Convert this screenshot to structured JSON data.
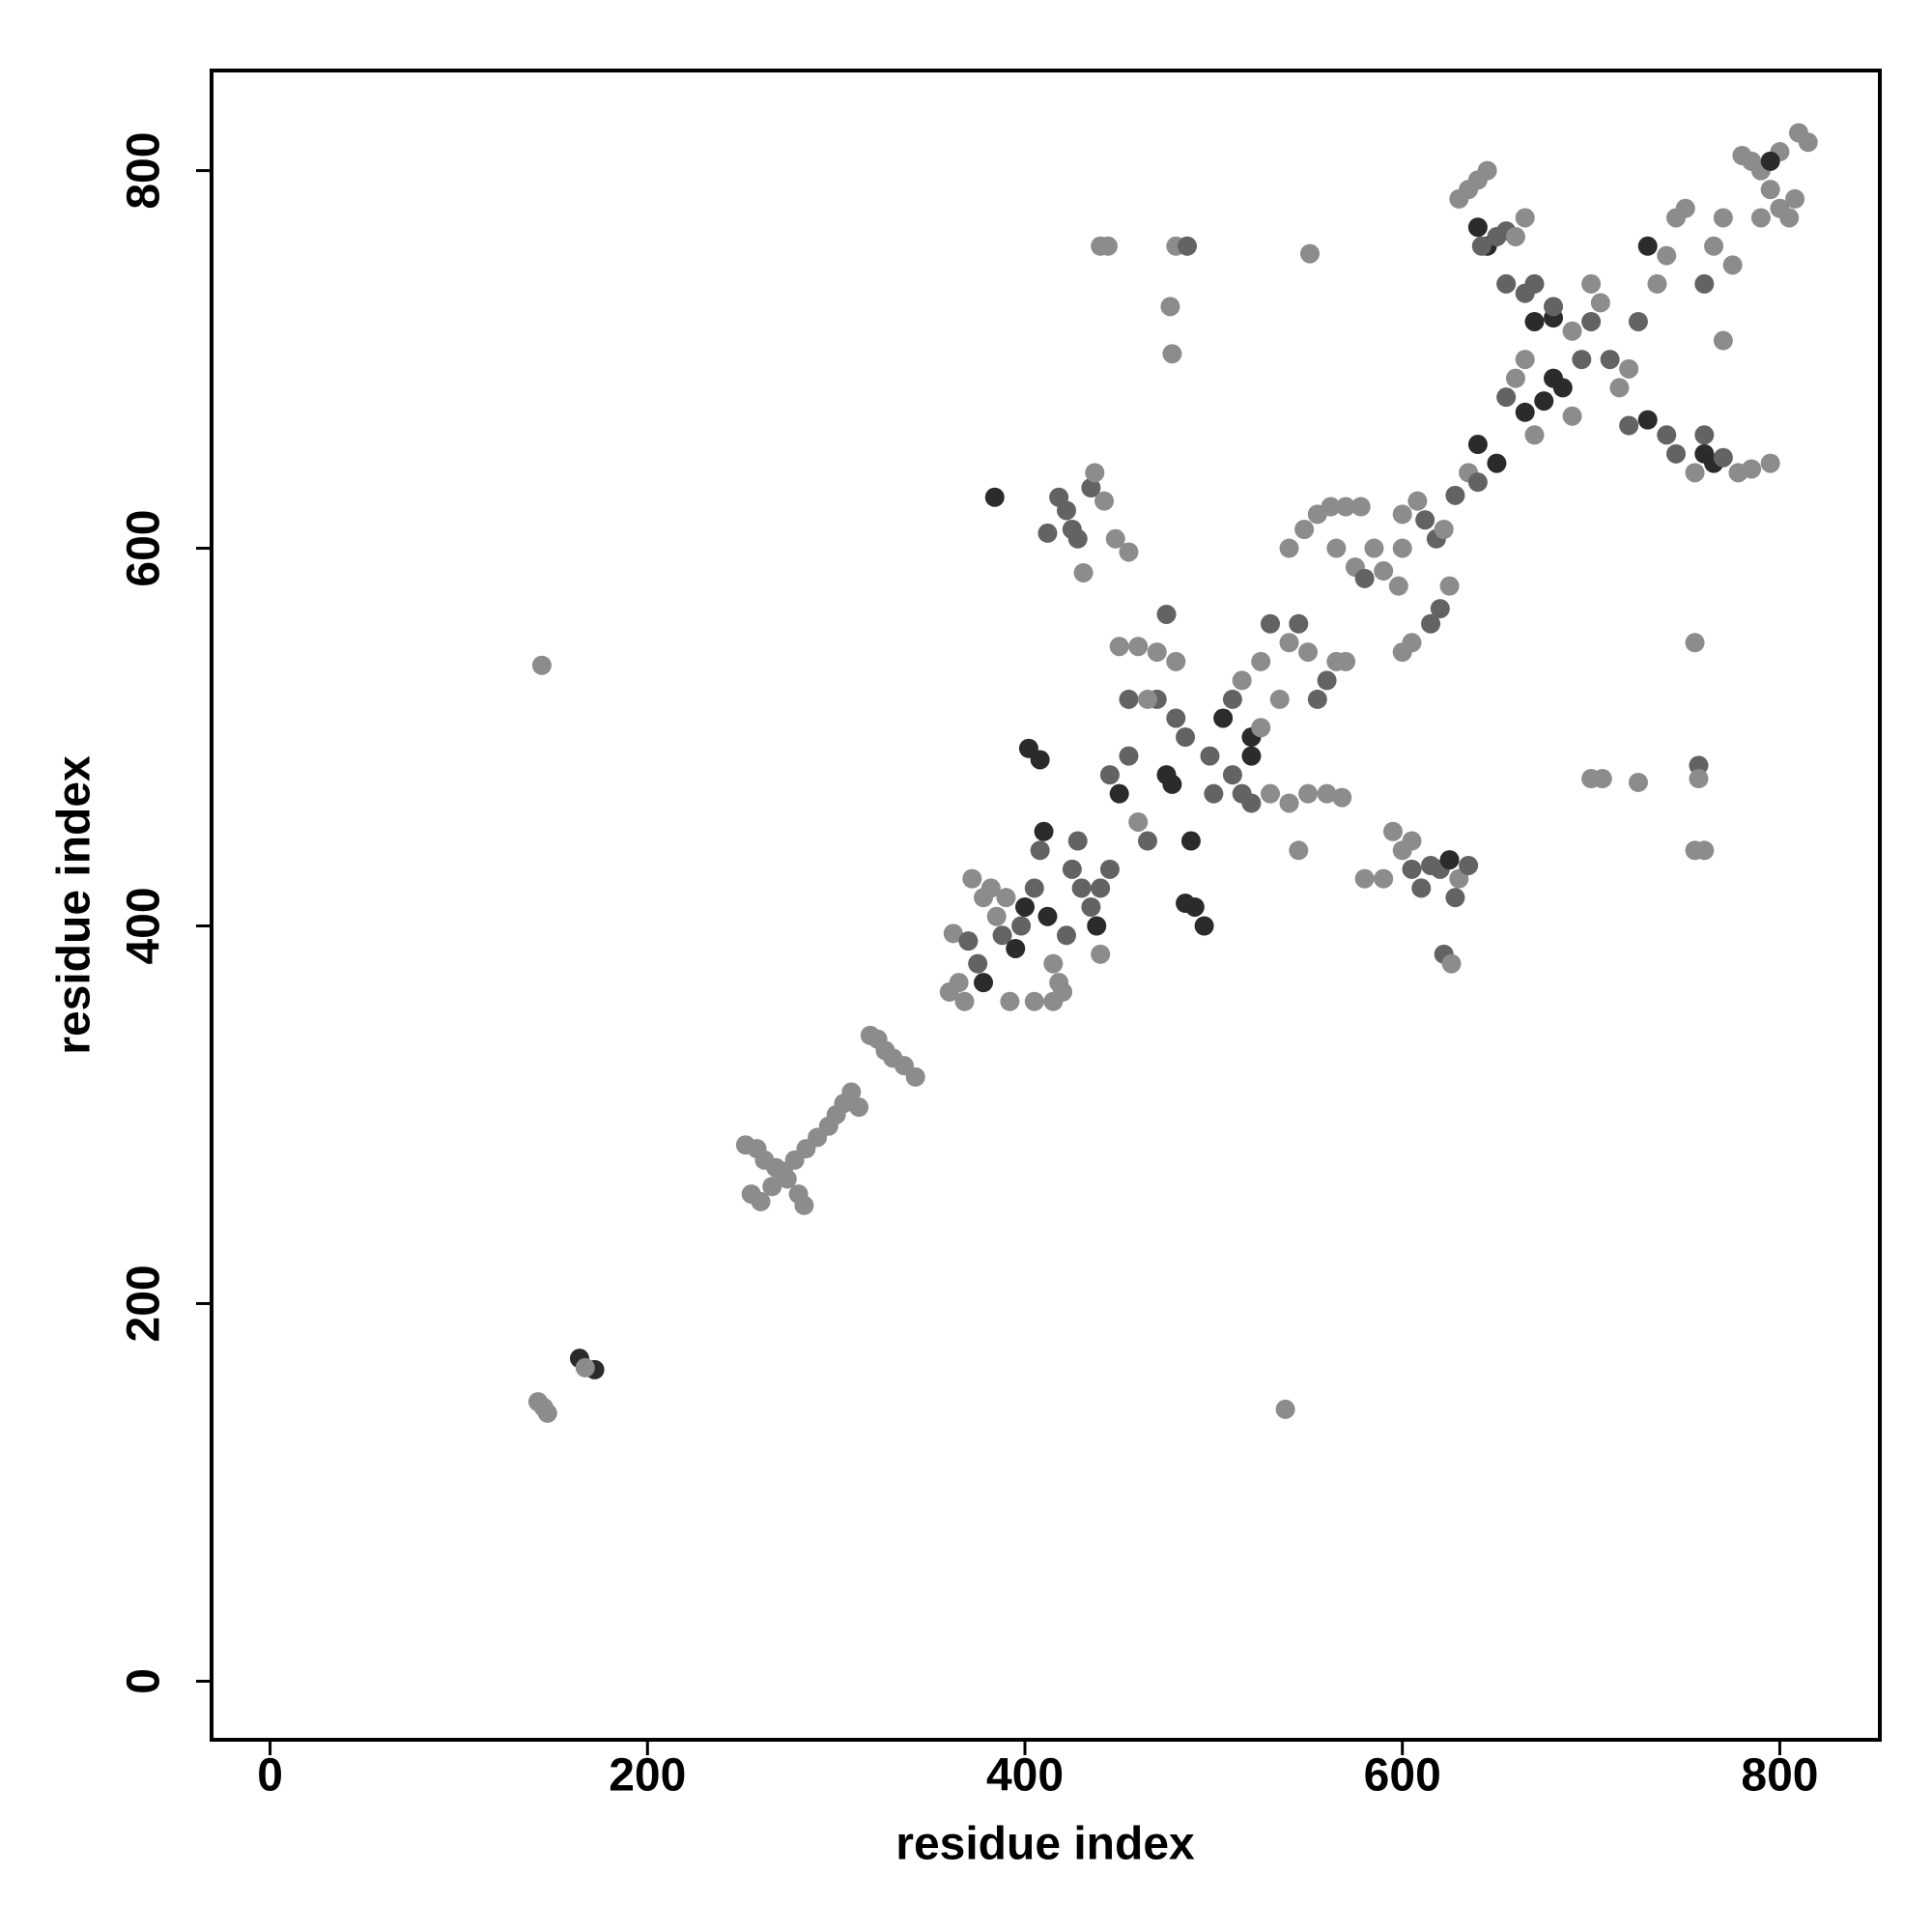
{
  "chart_data": {
    "type": "scatter",
    "xlabel": "residue index",
    "ylabel": "residue index",
    "xlim": [
      -31,
      853
    ],
    "ylim": [
      -31,
      853
    ],
    "xticks": [
      0,
      200,
      400,
      600,
      800
    ],
    "yticks": [
      0,
      200,
      400,
      600,
      800
    ],
    "grid": false,
    "x": [
      144,
      538,
      142,
      147,
      145,
      164,
      172,
      167,
      252,
      258,
      262,
      268,
      274,
      280,
      283,
      255,
      260,
      266,
      272,
      278,
      284,
      290,
      296,
      300,
      304,
      308,
      312,
      318,
      322,
      326,
      330,
      336,
      342,
      362,
      365,
      368,
      370,
      375,
      378,
      382,
      385,
      388,
      392,
      395,
      398,
      400,
      405,
      408,
      410,
      412,
      415,
      418,
      420,
      422,
      425,
      428,
      430,
      435,
      438,
      440,
      372,
      378,
      360,
      390,
      405,
      415,
      384,
      418,
      422,
      428,
      435,
      437,
      442,
      448,
      455,
      431,
      425,
      412,
      440,
      444,
      480,
      486,
      477,
      478,
      551,
      445,
      450,
      455,
      460,
      465,
      470,
      475,
      478,
      480,
      485,
      488,
      490,
      495,
      470,
      475,
      460,
      450,
      485,
      445,
      440,
      455,
      465,
      480,
      498,
      500,
      402,
      408,
      505,
      510,
      515,
      520,
      525,
      530,
      535,
      540,
      545,
      550,
      555,
      560,
      565,
      570,
      515,
      520,
      530,
      540,
      545,
      550,
      560,
      568,
      520,
      510,
      525,
      540,
      548,
      555,
      562,
      570,
      578,
      565,
      575,
      585,
      590,
      598,
      580,
      600,
      605,
      615,
      620,
      625,
      600,
      608,
      612,
      618,
      622,
      628,
      635,
      640,
      600,
      580,
      590,
      595,
      600,
      605,
      610,
      615,
      620,
      625,
      630,
      635,
      628,
      622,
      626,
      605,
      640,
      650,
      655,
      660,
      665,
      670,
      675,
      680,
      685,
      690,
      695,
      700,
      665,
      670,
      680,
      690,
      700,
      705,
      710,
      715,
      720,
      725,
      730,
      735,
      740,
      745,
      750,
      760,
      765,
      770,
      775,
      720,
      730,
      740,
      745,
      760,
      765,
      770,
      778,
      785,
      795,
      755,
      760,
      770,
      780,
      785,
      790,
      795,
      800,
      805,
      808,
      810,
      815,
      800,
      790,
      795,
      630,
      635,
      640,
      645,
      640,
      645,
      650,
      655,
      660,
      665,
      642,
      655,
      665,
      670,
      680,
      700,
      706,
      725,
      755,
      757,
      757,
      755,
      760
    ],
    "y": [
      538,
      144,
      148,
      142,
      145,
      171,
      165,
      166,
      284,
      282,
      276,
      272,
      266,
      258,
      252,
      258,
      254,
      262,
      270,
      276,
      282,
      288,
      294,
      300,
      306,
      312,
      304,
      342,
      340,
      334,
      330,
      326,
      320,
      396,
      370,
      360,
      392,
      380,
      370,
      420,
      405,
      395,
      360,
      388,
      400,
      410,
      420,
      440,
      450,
      405,
      380,
      370,
      365,
      395,
      430,
      445,
      420,
      410,
      400,
      385,
      425,
      415,
      365,
      415,
      360,
      360,
      627,
      627,
      620,
      605,
      632,
      640,
      625,
      605,
      598,
      587,
      610,
      608,
      760,
      760,
      760,
      760,
      728,
      703,
      756,
      480,
      470,
      490,
      455,
      445,
      520,
      480,
      475,
      510,
      500,
      445,
      410,
      400,
      545,
      565,
      548,
      548,
      412,
      430,
      420,
      520,
      520,
      540,
      490,
      470,
      494,
      488,
      510,
      520,
      530,
      500,
      540,
      560,
      520,
      550,
      560,
      545,
      520,
      530,
      540,
      540,
      470,
      465,
      470,
      465,
      440,
      470,
      470,
      468,
      490,
      480,
      505,
      600,
      610,
      618,
      622,
      622,
      622,
      600,
      590,
      600,
      588,
      580,
      584,
      545,
      550,
      560,
      568,
      580,
      618,
      625,
      615,
      605,
      610,
      628,
      640,
      635,
      600,
      425,
      425,
      450,
      440,
      430,
      420,
      432,
      430,
      435,
      425,
      432,
      415,
      385,
      380,
      445,
      655,
      645,
      680,
      690,
      672,
      660,
      678,
      690,
      685,
      670,
      700,
      720,
      700,
      720,
      722,
      715,
      740,
      730,
      700,
      685,
      695,
      720,
      760,
      740,
      755,
      775,
      780,
      740,
      760,
      775,
      750,
      665,
      668,
      660,
      650,
      650,
      645,
      648,
      640,
      642,
      645,
      640,
      660,
      710,
      808,
      805,
      800,
      790,
      780,
      775,
      785,
      820,
      815,
      810,
      775,
      805,
      785,
      790,
      795,
      800,
      770,
      760,
      765,
      768,
      765,
      775,
      760,
      740,
      735,
      740,
      728,
      478,
      478,
      476,
      550,
      485,
      478,
      440,
      440
    ],
    "colors": [
      "#8c8c8c",
      "#8c8c8c",
      "#8c8c8c",
      "#8c8c8c",
      "#8c8c8c",
      "#2b2b2b",
      "#2b2b2b",
      "#8c8c8c",
      "#8c8c8c",
      "#8c8c8c",
      "#8c8c8c",
      "#8c8c8c",
      "#8c8c8c",
      "#8c8c8c",
      "#8c8c8c",
      "#8c8c8c",
      "#8c8c8c",
      "#8c8c8c",
      "#8c8c8c",
      "#8c8c8c",
      "#8c8c8c",
      "#8c8c8c",
      "#8c8c8c",
      "#8c8c8c",
      "#8c8c8c",
      "#8c8c8c",
      "#8c8c8c",
      "#8c8c8c",
      "#8c8c8c",
      "#8c8c8c",
      "#8c8c8c",
      "#8c8c8c",
      "#8c8c8c",
      "#8c8c8c",
      "#8c8c8c",
      "#8c8c8c",
      "#636363",
      "#636363",
      "#2b2b2b",
      "#8c8c8c",
      "#8c8c8c",
      "#636363",
      "#8c8c8c",
      "#2b2b2b",
      "#636363",
      "#2b2b2b",
      "#636363",
      "#636363",
      "#2b2b2b",
      "#2b2b2b",
      "#8c8c8c",
      "#8c8c8c",
      "#8c8c8c",
      "#636363",
      "#636363",
      "#636363",
      "#636363",
      "#636363",
      "#2b2b2b",
      "#8c8c8c",
      "#8c8c8c",
      "#8c8c8c",
      "#8c8c8c",
      "#8c8c8c",
      "#8c8c8c",
      "#8c8c8c",
      "#2b2b2b",
      "#636363",
      "#636363",
      "#636363",
      "#636363",
      "#8c8c8c",
      "#8c8c8c",
      "#8c8c8c",
      "#8c8c8c",
      "#8c8c8c",
      "#636363",
      "#636363",
      "#8c8c8c",
      "#8c8c8c",
      "#8c8c8c",
      "#636363",
      "#8c8c8c",
      "#8c8c8c",
      "#8c8c8c",
      "#636363",
      "#2b2b2b",
      "#636363",
      "#8c8c8c",
      "#636363",
      "#636363",
      "#2b2b2b",
      "#2b2b2b",
      "#636363",
      "#636363",
      "#2b2b2b",
      "#2b2b2b",
      "#2b2b2b",
      "#8c8c8c",
      "#636363",
      "#8c8c8c",
      "#8c8c8c",
      "#2b2b2b",
      "#636363",
      "#636363",
      "#636363",
      "#8c8c8c",
      "#8c8c8c",
      "#636363",
      "#636363",
      "#2b2b2b",
      "#2b2b2b",
      "#2b2b2b",
      "#636363",
      "#8c8c8c",
      "#2b2b2b",
      "#8c8c8c",
      "#636363",
      "#8c8c8c",
      "#8c8c8c",
      "#636363",
      "#8c8c8c",
      "#636363",
      "#636363",
      "#8c8c8c",
      "#8c8c8c",
      "#636363",
      "#636363",
      "#8c8c8c",
      "#8c8c8c",
      "#8c8c8c",
      "#8c8c8c",
      "#8c8c8c",
      "#8c8c8c",
      "#2b2b2b",
      "#636363",
      "#8c8c8c",
      "#8c8c8c",
      "#8c8c8c",
      "#8c8c8c",
      "#8c8c8c",
      "#8c8c8c",
      "#8c8c8c",
      "#8c8c8c",
      "#8c8c8c",
      "#8c8c8c",
      "#8c8c8c",
      "#8c8c8c",
      "#636363",
      "#8c8c8c",
      "#8c8c8c",
      "#636363",
      "#636363",
      "#8c8c8c",
      "#8c8c8c",
      "#8c8c8c",
      "#636363",
      "#636363",
      "#8c8c8c",
      "#636363",
      "#8c8c8c",
      "#636363",
      "#8c8c8c",
      "#8c8c8c",
      "#8c8c8c",
      "#8c8c8c",
      "#8c8c8c",
      "#636363",
      "#636363",
      "#636363",
      "#636363",
      "#2b2b2b",
      "#8c8c8c",
      "#636363",
      "#636363",
      "#636363",
      "#8c8c8c",
      "#8c8c8c",
      "#2b2b2b",
      "#2b2b2b",
      "#636363",
      "#8c8c8c",
      "#2b2b2b",
      "#8c8c8c",
      "#2b2b2b",
      "#2b2b2b",
      "#2b2b2b",
      "#8c8c8c",
      "#636363",
      "#636363",
      "#8c8c8c",
      "#2b2b2b",
      "#2b2b2b",
      "#8c8c8c",
      "#8c8c8c",
      "#8c8c8c",
      "#636363",
      "#8c8c8c",
      "#8c8c8c",
      "#636363",
      "#2b2b2b",
      "#8c8c8c",
      "#8c8c8c",
      "#8c8c8c",
      "#8c8c8c",
      "#636363",
      "#8c8c8c",
      "#8c8c8c",
      "#8c8c8c",
      "#636363",
      "#2b2b2b",
      "#636363",
      "#636363",
      "#2b2b2b",
      "#2b2b2b",
      "#636363",
      "#8c8c8c",
      "#8c8c8c",
      "#8c8c8c",
      "#8c8c8c",
      "#636363",
      "#8c8c8c",
      "#8c8c8c",
      "#8c8c8c",
      "#8c8c8c",
      "#8c8c8c",
      "#8c8c8c",
      "#8c8c8c",
      "#8c8c8c",
      "#8c8c8c",
      "#8c8c8c",
      "#8c8c8c",
      "#8c8c8c",
      "#2b2b2b",
      "#8c8c8c",
      "#8c8c8c",
      "#8c8c8c",
      "#8c8c8c",
      "#2b2b2b",
      "#2b2b2b",
      "#636363",
      "#636363",
      "#8c8c8c",
      "#8c8c8c",
      "#636363",
      "#636363",
      "#636363",
      "#636363",
      "#636363",
      "#8c8c8c",
      "#8c8c8c",
      "#8c8c8c",
      "#8c8c8c",
      "#636363",
      "#8c8c8c",
      "#8c8c8c",
      "#8c8c8c"
    ]
  }
}
